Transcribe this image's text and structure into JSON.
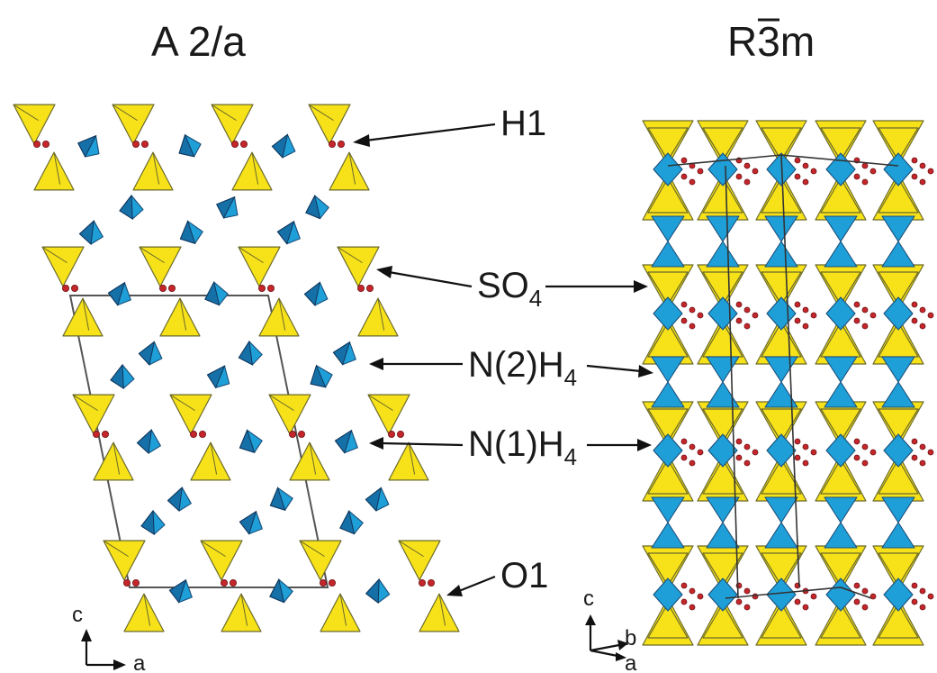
{
  "titles": {
    "left": "A 2/a",
    "right_prefix": "R",
    "right_bar": "3",
    "right_suffix": "m"
  },
  "labels": {
    "h1": "H1",
    "so4_main": "SO",
    "so4_sub": "4",
    "n2_main": "N(2)H",
    "n2_sub": "4",
    "n1_main": "N(1)H",
    "n1_sub": "4",
    "o1": "O1"
  },
  "axes_left": {
    "vertical": "c",
    "horizontal": "a"
  },
  "axes_right": {
    "vertical": "c",
    "diag_upper": "b",
    "diag_lower": "a"
  },
  "colors": {
    "sulfate": "#f7e21a",
    "ammonium": "#1f9fd8",
    "oxygen": "#c4262b",
    "cell_edge": "#555555"
  }
}
